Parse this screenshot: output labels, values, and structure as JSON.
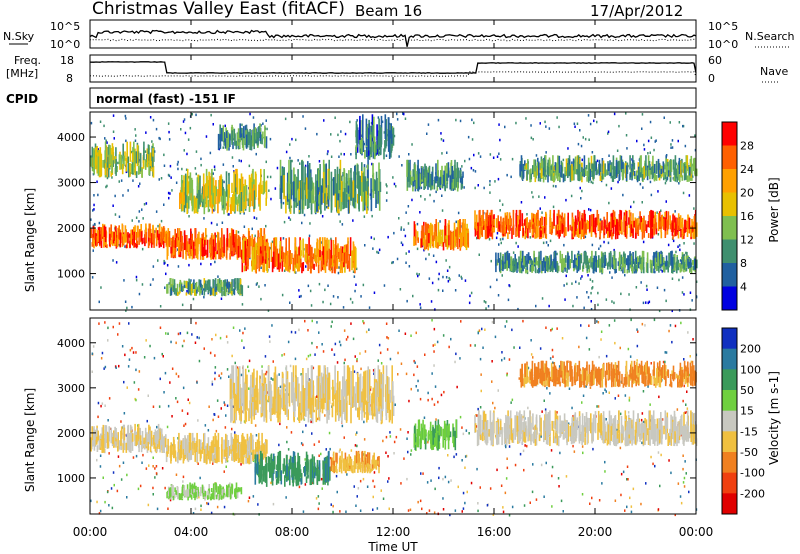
{
  "header": {
    "station": "Christmas Valley East (fitACF)",
    "beam": "Beam 16",
    "date": "17/Apr/2012"
  },
  "strip_panels": {
    "nsky": {
      "label": "N.Sky",
      "ticks": [
        "10^5",
        "10^0"
      ]
    },
    "nsearch": {
      "label": "N.Search",
      "ticks": [
        "10^5",
        "10^0"
      ]
    },
    "freq": {
      "label_line1": "Freq.",
      "label_line2": "[MHz]",
      "ticks": [
        "18",
        "8"
      ]
    },
    "nave": {
      "label": "Nave",
      "ticks": [
        "60",
        "0"
      ]
    },
    "cpid": {
      "label": "CPID",
      "value": "normal (fast) -151 IF"
    }
  },
  "x_axis": {
    "label": "Time UT",
    "ticks": [
      "00:00",
      "04:00",
      "08:00",
      "12:00",
      "16:00",
      "20:00",
      "00:00"
    ]
  },
  "chart_data": [
    {
      "type": "heatmap",
      "name": "power",
      "ylabel": "Slant Range [km]",
      "yticks": [
        1000,
        2000,
        3000,
        4000
      ],
      "ylim": [
        200,
        4550
      ],
      "xlim_hours": [
        0,
        24
      ],
      "colorbar": {
        "label": "Power [dB]",
        "ticks": [
          "28",
          "24",
          "20",
          "16",
          "12",
          "8",
          "4"
        ],
        "colors": [
          "#ff0000",
          "#ff6000",
          "#ffa000",
          "#e8c000",
          "#7fbf50",
          "#3f8f6f",
          "#2060a0",
          "#0000e0"
        ]
      },
      "bands": [
        {
          "t0": 0.0,
          "t1": 3.0,
          "r0": 1550,
          "r1": 2100,
          "level": 0.85
        },
        {
          "t0": 0.0,
          "t1": 2.5,
          "r0": 3100,
          "r1": 3900,
          "level": 0.45
        },
        {
          "t0": 3.0,
          "t1": 7.0,
          "r0": 1300,
          "r1": 2000,
          "level": 0.85
        },
        {
          "t0": 3.5,
          "t1": 7.0,
          "r0": 2300,
          "r1": 3300,
          "level": 0.5
        },
        {
          "t0": 5.0,
          "t1": 7.0,
          "r0": 3700,
          "r1": 4300,
          "level": 0.3
        },
        {
          "t0": 3.0,
          "t1": 6.0,
          "r0": 500,
          "r1": 900,
          "level": 0.35
        },
        {
          "t0": 6.0,
          "t1": 10.5,
          "r0": 1000,
          "r1": 1800,
          "level": 0.8
        },
        {
          "t0": 7.5,
          "t1": 11.5,
          "r0": 2300,
          "r1": 3500,
          "level": 0.35
        },
        {
          "t0": 10.5,
          "t1": 12.0,
          "r0": 3500,
          "r1": 4500,
          "level": 0.25
        },
        {
          "t0": 12.8,
          "t1": 15.0,
          "r0": 1500,
          "r1": 2200,
          "level": 0.75
        },
        {
          "t0": 12.5,
          "t1": 14.8,
          "r0": 2800,
          "r1": 3500,
          "level": 0.3
        },
        {
          "t0": 15.2,
          "t1": 24.0,
          "r0": 1750,
          "r1": 2400,
          "level": 0.85
        },
        {
          "t0": 16.0,
          "t1": 24.0,
          "r0": 1000,
          "r1": 1500,
          "level": 0.3
        },
        {
          "t0": 17.0,
          "t1": 24.0,
          "r0": 3000,
          "r1": 3600,
          "level": 0.35
        }
      ]
    },
    {
      "type": "heatmap",
      "name": "velocity",
      "ylabel": "Slant Range [km]",
      "yticks": [
        1000,
        2000,
        3000,
        4000
      ],
      "ylim": [
        200,
        4550
      ],
      "xlim_hours": [
        0,
        24
      ],
      "colorbar": {
        "label": "Velocity [m s-1]",
        "ticks": [
          "200",
          "100",
          "50",
          "15",
          "-15",
          "-50",
          "-100",
          "-200"
        ],
        "colors": [
          "#1030c0",
          "#2a7aa0",
          "#3a9a5a",
          "#6fcf3f",
          "#c8c8c0",
          "#f0c040",
          "#f08020",
          "#f04010",
          "#e00000"
        ]
      },
      "bands": [
        {
          "t0": 0.0,
          "t1": 3.0,
          "r0": 1550,
          "r1": 2200,
          "vel": -10
        },
        {
          "t0": 3.0,
          "t1": 7.0,
          "r0": 1300,
          "r1": 2000,
          "vel": -20
        },
        {
          "t0": 6.5,
          "t1": 9.5,
          "r0": 800,
          "r1": 1600,
          "vel": 90
        },
        {
          "t0": 9.5,
          "t1": 11.5,
          "r0": 1100,
          "r1": 1600,
          "vel": -40
        },
        {
          "t0": 5.5,
          "t1": 12.0,
          "r0": 2200,
          "r1": 3500,
          "vel": -20
        },
        {
          "t0": 12.8,
          "t1": 14.5,
          "r0": 1600,
          "r1": 2300,
          "vel": 40
        },
        {
          "t0": 15.2,
          "t1": 24.0,
          "r0": 1700,
          "r1": 2500,
          "vel": -5
        },
        {
          "t0": 17.0,
          "t1": 24.0,
          "r0": 3000,
          "r1": 3600,
          "vel": -60
        },
        {
          "t0": 3.0,
          "t1": 6.0,
          "r0": 500,
          "r1": 900,
          "vel": 20
        }
      ]
    }
  ]
}
